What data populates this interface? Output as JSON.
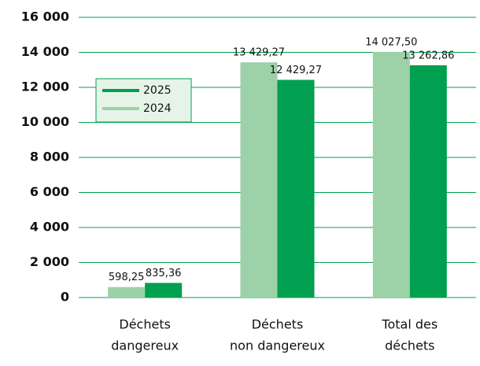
{
  "chart_data": {
    "type": "bar",
    "categories": [
      [
        "Déchets",
        "dangereux"
      ],
      [
        "Déchets",
        "non dangereux"
      ],
      [
        "Total des",
        "déchets"
      ]
    ],
    "series": [
      {
        "name": "2024",
        "color": "#9dd1a8",
        "values": [
          598.25,
          13429.27,
          14027.5
        ],
        "value_labels": [
          "598,25",
          "13 429,27",
          "14 027,50"
        ]
      },
      {
        "name": "2025",
        "color": "#00a050",
        "values": [
          835.36,
          12429.27,
          13262.86
        ],
        "value_labels": [
          "835,36",
          "12 429,27",
          "13 262,86"
        ]
      }
    ],
    "ylim": [
      0,
      16000
    ],
    "yticks": [
      0,
      {
        "value": 2000,
        "label": "2 000"
      },
      {
        "value": 4000,
        "label": "4 000"
      },
      {
        "value": 6000,
        "label": "6 000"
      },
      {
        "value": 8000,
        "label": "8 000"
      },
      {
        "value": 10000,
        "label": "10 000"
      },
      {
        "value": 12000,
        "label": "12 000"
      },
      {
        "value": 14000,
        "label": "14 000"
      },
      {
        "value": 16000,
        "label": "16 000"
      }
    ],
    "grid": true,
    "legend": "upper left",
    "legend_order": [
      "2025",
      "2024"
    ]
  }
}
